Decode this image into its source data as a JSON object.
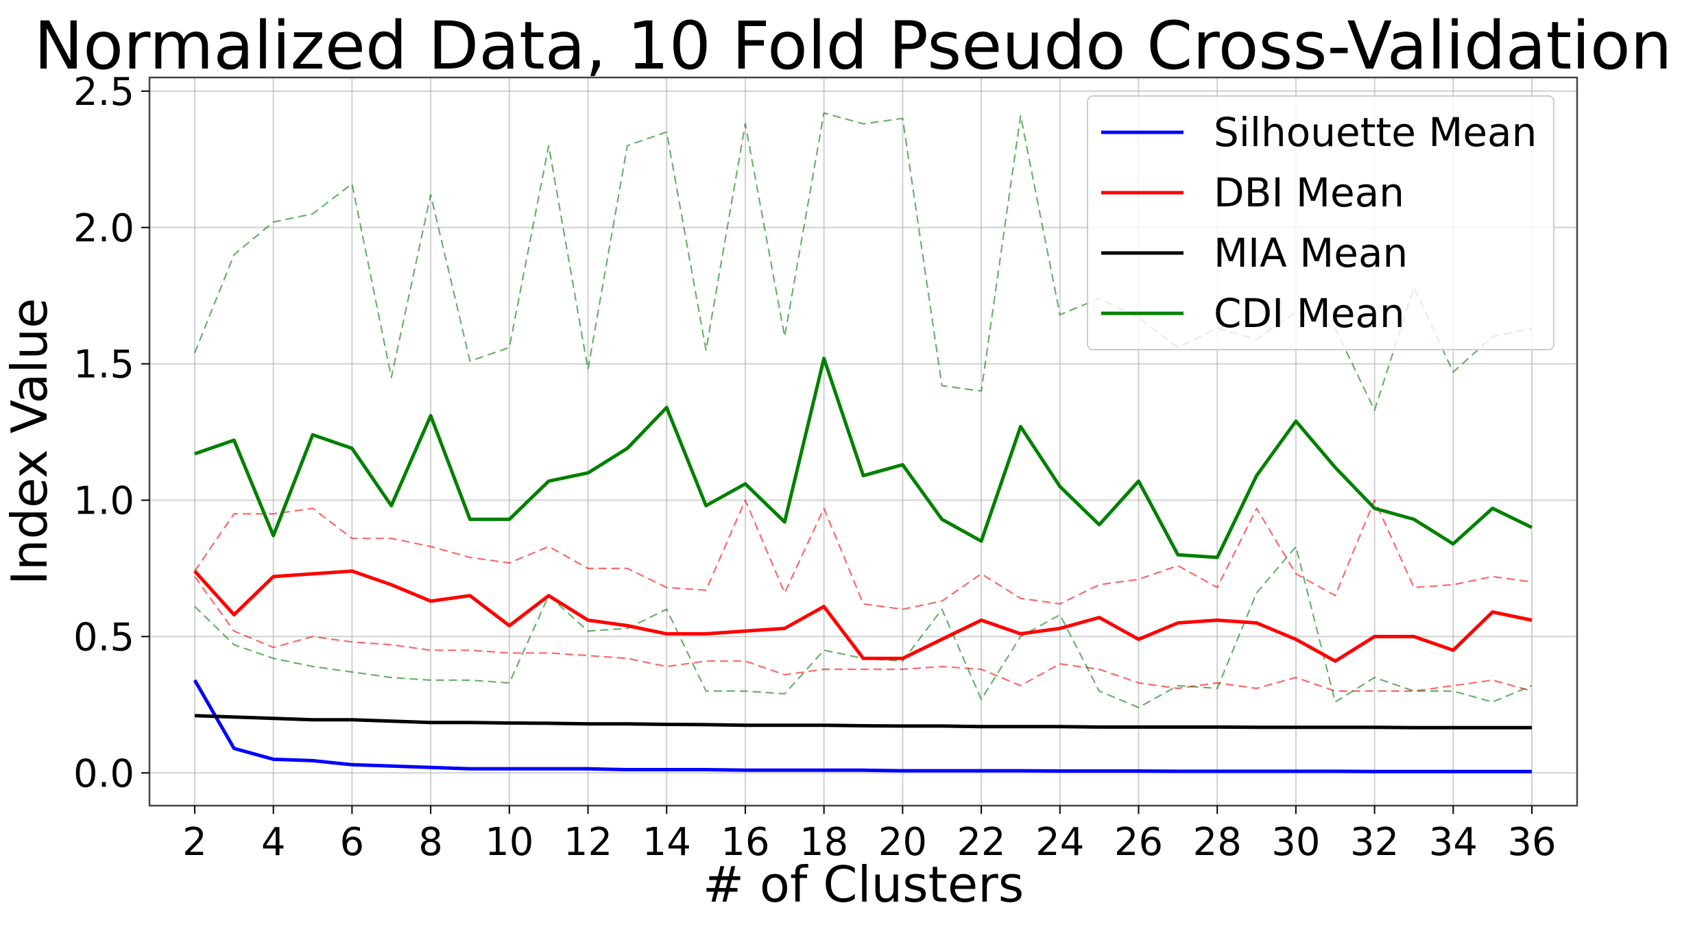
{
  "chart_data": {
    "type": "line",
    "title": "Normalized Data, 10 Fold Pseudo Cross-Validation",
    "xlabel": "# of Clusters",
    "ylabel": "Index Value",
    "xlim": [
      0.85,
      37.15
    ],
    "ylim": [
      -0.12,
      2.55
    ],
    "xticks": [
      2,
      4,
      6,
      8,
      10,
      12,
      14,
      16,
      18,
      20,
      22,
      24,
      26,
      28,
      30,
      32,
      34,
      36
    ],
    "yticks": [
      0.0,
      0.5,
      1.0,
      1.5,
      2.0,
      2.5
    ],
    "ytick_labels": [
      "0.0",
      "0.5",
      "1.0",
      "1.5",
      "2.0",
      "2.5"
    ],
    "grid": true,
    "legend_position": "top-right",
    "x": [
      2,
      3,
      4,
      5,
      6,
      7,
      8,
      9,
      10,
      11,
      12,
      13,
      14,
      15,
      16,
      17,
      18,
      19,
      20,
      21,
      22,
      23,
      24,
      25,
      26,
      27,
      28,
      29,
      30,
      31,
      32,
      33,
      34,
      35,
      36
    ],
    "series": [
      {
        "name": "Silhouette Mean",
        "color": "#0000ff",
        "style": "solid",
        "values": [
          0.34,
          0.09,
          0.05,
          0.045,
          0.03,
          0.025,
          0.02,
          0.015,
          0.015,
          0.015,
          0.015,
          0.012,
          0.012,
          0.012,
          0.01,
          0.01,
          0.01,
          0.01,
          0.008,
          0.008,
          0.008,
          0.008,
          0.007,
          0.007,
          0.007,
          0.006,
          0.006,
          0.006,
          0.006,
          0.006,
          0.005,
          0.005,
          0.005,
          0.005,
          0.005
        ]
      },
      {
        "name": "DBI Mean",
        "color": "#ff0000",
        "style": "solid",
        "values": [
          0.74,
          0.58,
          0.72,
          0.73,
          0.74,
          0.69,
          0.63,
          0.65,
          0.54,
          0.65,
          0.56,
          0.54,
          0.51,
          0.51,
          0.52,
          0.53,
          0.61,
          0.42,
          0.42,
          0.49,
          0.56,
          0.51,
          0.53,
          0.57,
          0.49,
          0.55,
          0.56,
          0.55,
          0.49,
          0.41,
          0.5,
          0.5,
          0.45,
          0.59,
          0.56
        ]
      },
      {
        "name": "MIA Mean",
        "color": "#000000",
        "style": "solid",
        "values": [
          0.21,
          0.205,
          0.2,
          0.195,
          0.195,
          0.19,
          0.185,
          0.185,
          0.183,
          0.182,
          0.18,
          0.18,
          0.178,
          0.177,
          0.175,
          0.175,
          0.175,
          0.173,
          0.172,
          0.172,
          0.17,
          0.17,
          0.17,
          0.168,
          0.168,
          0.168,
          0.168,
          0.167,
          0.167,
          0.167,
          0.167,
          0.166,
          0.166,
          0.166,
          0.166
        ]
      },
      {
        "name": "CDI Mean",
        "color": "#008000",
        "style": "solid",
        "values": [
          1.17,
          1.22,
          0.87,
          1.24,
          1.19,
          0.98,
          1.31,
          0.93,
          0.93,
          1.07,
          1.1,
          1.19,
          1.34,
          0.98,
          1.06,
          0.92,
          1.52,
          1.09,
          1.13,
          0.93,
          0.85,
          1.27,
          1.05,
          0.91,
          1.07,
          0.8,
          0.79,
          1.09,
          1.29,
          1.12,
          0.97,
          0.93,
          0.84,
          0.97,
          0.9
        ]
      },
      {
        "color": "#ff0000",
        "style": "dashed",
        "values": [
          0.74,
          0.95,
          0.95,
          0.97,
          0.86,
          0.86,
          0.83,
          0.79,
          0.77,
          0.83,
          0.75,
          0.75,
          0.68,
          0.67,
          1.0,
          0.66,
          0.97,
          0.62,
          0.6,
          0.63,
          0.73,
          0.64,
          0.62,
          0.69,
          0.71,
          0.76,
          0.68,
          0.97,
          0.73,
          0.65,
          1.0,
          0.68,
          0.69,
          0.72,
          0.7
        ]
      },
      {
        "color": "#ff0000",
        "style": "dashed",
        "values": [
          0.72,
          0.52,
          0.46,
          0.5,
          0.48,
          0.47,
          0.45,
          0.45,
          0.44,
          0.44,
          0.43,
          0.42,
          0.39,
          0.41,
          0.41,
          0.36,
          0.38,
          0.38,
          0.38,
          0.39,
          0.38,
          0.32,
          0.4,
          0.38,
          0.33,
          0.31,
          0.33,
          0.31,
          0.35,
          0.3,
          0.3,
          0.3,
          0.32,
          0.34,
          0.3
        ]
      },
      {
        "color": "#008000",
        "style": "dashed",
        "values": [
          1.54,
          1.9,
          2.02,
          2.05,
          2.16,
          1.45,
          2.12,
          1.51,
          1.56,
          2.3,
          1.48,
          2.3,
          2.35,
          1.55,
          2.38,
          1.6,
          2.42,
          2.38,
          2.4,
          1.42,
          1.4,
          2.41,
          1.68,
          1.74,
          1.67,
          1.56,
          1.63,
          1.59,
          1.69,
          1.63,
          1.33,
          1.78,
          1.47,
          1.6,
          1.63
        ]
      },
      {
        "color": "#008000",
        "style": "dashed",
        "values": [
          0.61,
          0.47,
          0.42,
          0.39,
          0.37,
          0.35,
          0.34,
          0.34,
          0.33,
          0.65,
          0.52,
          0.53,
          0.6,
          0.3,
          0.3,
          0.29,
          0.45,
          0.42,
          0.41,
          0.6,
          0.27,
          0.5,
          0.58,
          0.3,
          0.24,
          0.32,
          0.31,
          0.66,
          0.83,
          0.26,
          0.35,
          0.3,
          0.3,
          0.26,
          0.32
        ]
      }
    ]
  }
}
